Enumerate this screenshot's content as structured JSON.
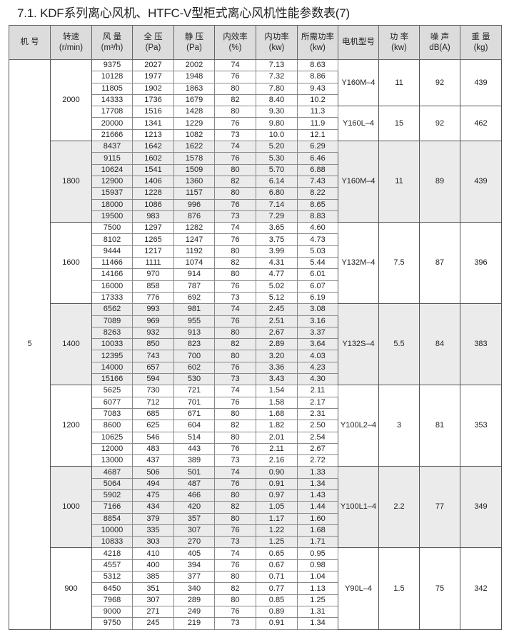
{
  "title": "7.1. KDF系列离心风机、HTFC-V型柜式离心风机性能参数表(7)",
  "table": {
    "headers": [
      {
        "line1": "机 号",
        "line2": ""
      },
      {
        "line1": "转速",
        "line2": "(r/min)"
      },
      {
        "line1": "风 量",
        "line2": "(m³/h)"
      },
      {
        "line1": "全 压",
        "line2": "(Pa)"
      },
      {
        "line1": "静 压",
        "line2": "(Pa)"
      },
      {
        "line1": "内效率",
        "line2": "(%)"
      },
      {
        "line1": "内功率",
        "line2": "(kw)"
      },
      {
        "line1": "所需功率",
        "line2": "(kw)"
      },
      {
        "line1": "电机型号",
        "line2": ""
      },
      {
        "line1": "功 率",
        "line2": "(kw)"
      },
      {
        "line1": "噪 声",
        "line2": "dB(A)"
      },
      {
        "line1": "重 量",
        "line2": "(kg)"
      }
    ],
    "machine_no": "5",
    "groups": [
      {
        "speed": "2000",
        "rows": [
          [
            "9375",
            "2027",
            "2002",
            "74",
            "7.13",
            "8.63"
          ],
          [
            "10128",
            "1977",
            "1948",
            "76",
            "7.32",
            "8.86"
          ],
          [
            "11805",
            "1902",
            "1863",
            "80",
            "7.80",
            "9.43"
          ],
          [
            "14333",
            "1736",
            "1679",
            "82",
            "8.40",
            "10.2"
          ],
          [
            "17708",
            "1516",
            "1428",
            "80",
            "9.30",
            "11.3"
          ],
          [
            "20000",
            "1341",
            "1229",
            "76",
            "9.80",
            "11.9"
          ],
          [
            "21666",
            "1213",
            "1082",
            "73",
            "10.0",
            "12.1"
          ]
        ],
        "motors": [
          {
            "model": "Y160M–4",
            "power": "11",
            "noise": "92",
            "weight": "439",
            "rows": 4
          },
          {
            "model": "Y160L–4",
            "power": "15",
            "noise": "92",
            "weight": "462",
            "rows": 3
          }
        ]
      },
      {
        "speed": "1800",
        "rows": [
          [
            "8437",
            "1642",
            "1622",
            "74",
            "5.20",
            "6.29"
          ],
          [
            "9115",
            "1602",
            "1578",
            "76",
            "5.30",
            "6.46"
          ],
          [
            "10624",
            "1541",
            "1509",
            "80",
            "5.70",
            "6.88"
          ],
          [
            "12900",
            "1406",
            "1360",
            "82",
            "6.14",
            "7.43"
          ],
          [
            "15937",
            "1228",
            "1157",
            "80",
            "6.80",
            "8.22"
          ],
          [
            "18000",
            "1086",
            "996",
            "76",
            "7.14",
            "8.65"
          ],
          [
            "19500",
            "983",
            "876",
            "73",
            "7.29",
            "8.83"
          ]
        ],
        "motors": [
          {
            "model": "Y160M–4",
            "power": "11",
            "noise": "89",
            "weight": "439",
            "rows": 7
          }
        ]
      },
      {
        "speed": "1600",
        "rows": [
          [
            "7500",
            "1297",
            "1282",
            "74",
            "3.65",
            "4.60"
          ],
          [
            "8102",
            "1265",
            "1247",
            "76",
            "3.75",
            "4.73"
          ],
          [
            "9444",
            "1217",
            "1192",
            "80",
            "3.99",
            "5.03"
          ],
          [
            "11466",
            "1111",
            "1074",
            "82",
            "4.31",
            "5.44"
          ],
          [
            "14166",
            "970",
            "914",
            "80",
            "4.77",
            "6.01"
          ],
          [
            "16000",
            "858",
            "787",
            "76",
            "5.02",
            "6.07"
          ],
          [
            "17333",
            "776",
            "692",
            "73",
            "5.12",
            "6.19"
          ]
        ],
        "motors": [
          {
            "model": "Y132M–4",
            "power": "7.5",
            "noise": "87",
            "weight": "396",
            "rows": 7
          }
        ]
      },
      {
        "speed": "1400",
        "rows": [
          [
            "6562",
            "993",
            "981",
            "74",
            "2.45",
            "3.08"
          ],
          [
            "7089",
            "969",
            "955",
            "76",
            "2.51",
            "3.16"
          ],
          [
            "8263",
            "932",
            "913",
            "80",
            "2.67",
            "3.37"
          ],
          [
            "10033",
            "850",
            "823",
            "82",
            "2.89",
            "3.64"
          ],
          [
            "12395",
            "743",
            "700",
            "80",
            "3.20",
            "4.03"
          ],
          [
            "14000",
            "657",
            "602",
            "76",
            "3.36",
            "4.23"
          ],
          [
            "15166",
            "594",
            "530",
            "73",
            "3.43",
            "4.30"
          ]
        ],
        "motors": [
          {
            "model": "Y132S–4",
            "power": "5.5",
            "noise": "84",
            "weight": "383",
            "rows": 7
          }
        ]
      },
      {
        "speed": "1200",
        "rows": [
          [
            "5625",
            "730",
            "721",
            "74",
            "1.54",
            "2.11"
          ],
          [
            "6077",
            "712",
            "701",
            "76",
            "1.58",
            "2.17"
          ],
          [
            "7083",
            "685",
            "671",
            "80",
            "1.68",
            "2.31"
          ],
          [
            "8600",
            "625",
            "604",
            "82",
            "1.82",
            "2.50"
          ],
          [
            "10625",
            "546",
            "514",
            "80",
            "2.01",
            "2.54"
          ],
          [
            "12000",
            "483",
            "443",
            "76",
            "2.11",
            "2.67"
          ],
          [
            "13000",
            "437",
            "389",
            "73",
            "2.16",
            "2.72"
          ]
        ],
        "motors": [
          {
            "model": "Y100L2–4",
            "power": "3",
            "noise": "81",
            "weight": "353",
            "rows": 7
          }
        ]
      },
      {
        "speed": "1000",
        "rows": [
          [
            "4687",
            "506",
            "501",
            "74",
            "0.90",
            "1.33"
          ],
          [
            "5064",
            "494",
            "487",
            "76",
            "0.91",
            "1.34"
          ],
          [
            "5902",
            "475",
            "466",
            "80",
            "0.97",
            "1.43"
          ],
          [
            "7166",
            "434",
            "420",
            "82",
            "1.05",
            "1.44"
          ],
          [
            "8854",
            "379",
            "357",
            "80",
            "1.17",
            "1.60"
          ],
          [
            "10000",
            "335",
            "307",
            "76",
            "1.22",
            "1.68"
          ],
          [
            "10833",
            "303",
            "270",
            "73",
            "1.25",
            "1.71"
          ]
        ],
        "motors": [
          {
            "model": "Y100L1–4",
            "power": "2.2",
            "noise": "77",
            "weight": "349",
            "rows": 7
          }
        ]
      },
      {
        "speed": "900",
        "rows": [
          [
            "4218",
            "410",
            "405",
            "74",
            "0.65",
            "0.95"
          ],
          [
            "4557",
            "400",
            "394",
            "76",
            "0.67",
            "0.98"
          ],
          [
            "5312",
            "385",
            "377",
            "80",
            "0.71",
            "1.04"
          ],
          [
            "6450",
            "351",
            "340",
            "82",
            "0.77",
            "1.13"
          ],
          [
            "7968",
            "307",
            "289",
            "80",
            "0.85",
            "1.25"
          ],
          [
            "9000",
            "271",
            "249",
            "76",
            "0.89",
            "1.31"
          ],
          [
            "9750",
            "245",
            "219",
            "73",
            "0.91",
            "1.34"
          ]
        ],
        "motors": [
          {
            "model": "Y90L–4",
            "power": "1.5",
            "noise": "75",
            "weight": "342",
            "rows": 7
          }
        ]
      }
    ],
    "colors": {
      "header_bg": "#dcdcdc",
      "shade_bg": "#ebebeb"
    }
  }
}
